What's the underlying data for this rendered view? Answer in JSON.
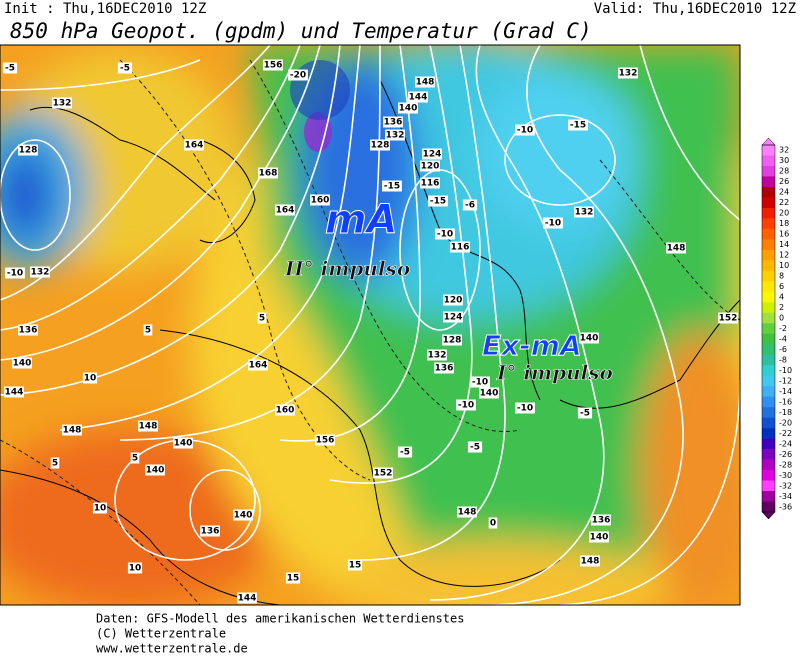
{
  "header": {
    "init": "Init : Thu,16DEC2010 12Z",
    "valid": "Valid: Thu,16DEC2010 12Z",
    "title": "850 hPa Geopot. (gpdm) und Temperatur (Grad C)"
  },
  "annotations": {
    "air_mass_1": "mA",
    "impulse_1": "II° impulso",
    "air_mass_2": "Ex-mA",
    "impulse_2": "I° impulso"
  },
  "contour_labels": [
    132,
    128,
    132,
    -10,
    136,
    140,
    144,
    148,
    148,
    140,
    140,
    136,
    140,
    144,
    152,
    156,
    160,
    164,
    164,
    168,
    164,
    148,
    144,
    140,
    136,
    132,
    128,
    124,
    120,
    116,
    116,
    120,
    124,
    128,
    132,
    136,
    140,
    148,
    136,
    140,
    148,
    132,
    132,
    148,
    152,
    140,
    -10,
    -15,
    -10,
    -10,
    -10,
    -5,
    -10,
    -6,
    0,
    -5,
    -5,
    5,
    5,
    10,
    10,
    10,
    15,
    5,
    5,
    -5,
    -5,
    -15,
    -10,
    -15,
    -20,
    156,
    160,
    15
  ],
  "colorbar": {
    "ticks": [
      32,
      30,
      28,
      26,
      24,
      22,
      20,
      18,
      16,
      14,
      12,
      10,
      8,
      6,
      4,
      2,
      0,
      -2,
      -4,
      -6,
      -8,
      -10,
      -12,
      -14,
      -16,
      -18,
      -20,
      -22,
      -24,
      -26,
      -28,
      -30,
      -32,
      -34,
      -36
    ],
    "colors": [
      "#ff80ff",
      "#f060f0",
      "#e040e0",
      "#c000a0",
      "#b00000",
      "#d00000",
      "#f02000",
      "#ff4000",
      "#ff6000",
      "#ff8000",
      "#ffa000",
      "#ffb800",
      "#ffd000",
      "#ffe800",
      "#f8f800",
      "#d0f000",
      "#a0e040",
      "#60d040",
      "#40c040",
      "#30c070",
      "#30c0a0",
      "#30d0d0",
      "#40c8f0",
      "#40b0f0",
      "#3090f0",
      "#2070e0",
      "#1050d0",
      "#0030c0",
      "#4000c0",
      "#8000c0",
      "#b000c0",
      "#e000e0",
      "#ff40ff",
      "#a000a0",
      "#600060"
    ]
  },
  "footer": {
    "line1": "Daten: GFS-Modell des amerikanischen Wetterdienstes",
    "line2": "(C) Wetterzentrale",
    "line3": "www.wetterzentrale.de"
  }
}
